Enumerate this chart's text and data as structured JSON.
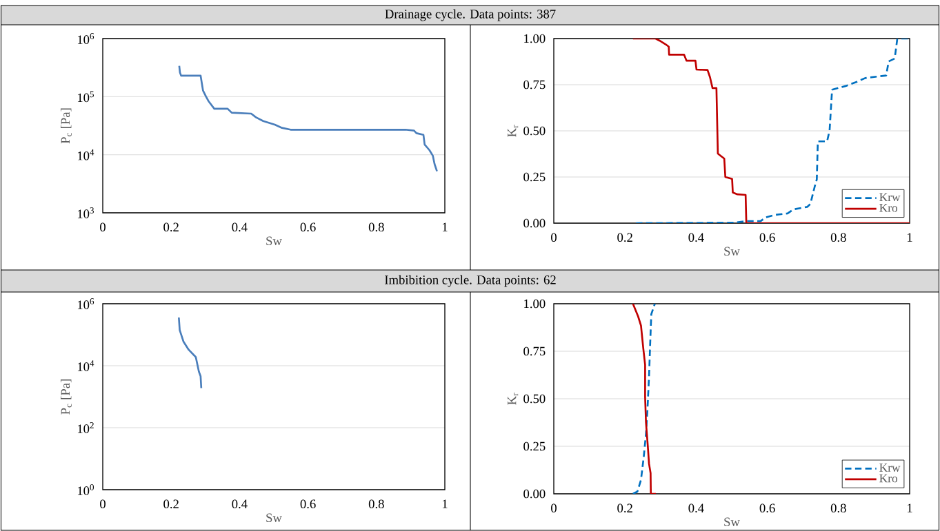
{
  "chart_data": [
    {
      "type": "line",
      "title": "Drainage cycle. Data points: 387",
      "xlabel": "Sw",
      "ylabel": "P$_{c}$ [Pa]",
      "log": "y",
      "grid": "y",
      "xlim": [
        0,
        1
      ],
      "xticks": [
        0,
        0.2,
        0.4,
        0.6,
        0.8,
        1
      ],
      "ylim": [
        1000,
        1000000
      ],
      "yticks": [
        {
          "value": 1000,
          "label": "10$^{3}$"
        },
        {
          "value": 10000,
          "label": "10$^{4}$"
        },
        {
          "value": 100000,
          "label": "10$^{5}$"
        },
        {
          "value": 1000000,
          "label": "10$^{6}$"
        }
      ],
      "series": [
        {
          "color": "#4a7ebb",
          "line_style": "solid",
          "x": [
            0.2236,
            0.2257,
            0.229,
            0.286,
            0.293,
            0.302,
            0.309,
            0.326,
            0.365,
            0.377,
            0.434,
            0.448,
            0.469,
            0.503,
            0.524,
            0.549,
            0.885,
            0.91,
            0.917,
            0.9375,
            0.941,
            0.955,
            0.965,
            0.97,
            0.977
          ],
          "values": [
            340000,
            260000,
            230000,
            230000,
            128000,
            100000,
            84000,
            62000,
            62000,
            53000,
            51000,
            44000,
            38000,
            33000,
            29000,
            27000,
            27000,
            26000,
            23500,
            22000,
            15000,
            12000,
            9600,
            6900,
            5200
          ]
        }
      ]
    },
    {
      "type": "line",
      "xlabel": "Sw",
      "ylabel": "K$_{r}$",
      "grid": "y",
      "legend": "bottom right",
      "xlim": [
        0,
        1
      ],
      "xticks": [
        0,
        0.2,
        0.4,
        0.6,
        0.8,
        1
      ],
      "ylim": [
        0,
        1
      ],
      "yticks": [
        {
          "value": 0,
          "label": "0.00"
        },
        {
          "value": 0.25,
          "label": "0.25"
        },
        {
          "value": 0.5,
          "label": "0.50"
        },
        {
          "value": 0.75,
          "label": "0.75"
        },
        {
          "value": 1,
          "label": "1.00"
        }
      ],
      "series": [
        {
          "name": "Krw",
          "color": "#0070c0",
          "line_style": "dashed",
          "x": [
            0.231,
            0.508,
            0.539,
            0.581,
            0.595,
            0.619,
            0.657,
            0.674,
            0.712,
            0.721,
            0.733,
            0.739,
            0.742,
            0.768,
            0.775,
            0.782,
            0.82,
            0.848,
            0.875,
            0.934,
            0.941,
            0.958,
            0.965,
            0.972,
            1.0
          ],
          "values": [
            0,
            0.003,
            0.011,
            0.011,
            0.031,
            0.044,
            0.053,
            0.075,
            0.088,
            0.104,
            0.197,
            0.237,
            0.443,
            0.443,
            0.503,
            0.723,
            0.743,
            0.763,
            0.786,
            0.8,
            0.876,
            0.892,
            0.996,
            1.0,
            1.0
          ]
        },
        {
          "name": "Kro",
          "color": "#c00000",
          "line_style": "solid",
          "x": [
            0.2225,
            0.286,
            0.297,
            0.314,
            0.323,
            0.324,
            0.366,
            0.373,
            0.398,
            0.401,
            0.432,
            0.439,
            0.446,
            0.457,
            0.461,
            0.4695,
            0.479,
            0.482,
            0.501,
            0.503,
            0.516,
            0.539,
            0.541,
            1.0
          ],
          "values": [
            1.0,
            1.0,
            0.989,
            0.969,
            0.956,
            0.913,
            0.913,
            0.88,
            0.88,
            0.832,
            0.83,
            0.79,
            0.732,
            0.732,
            0.377,
            0.364,
            0.35,
            0.25,
            0.24,
            0.166,
            0.156,
            0.153,
            0.0,
            0.0
          ]
        }
      ]
    },
    {
      "type": "line",
      "title": "Imbibition cycle. Data points: 62",
      "xlabel": "Sw",
      "ylabel": "P$_{c}$ [Pa]",
      "log": "y",
      "grid": "y",
      "xlim": [
        0,
        1
      ],
      "xticks": [
        0,
        0.2,
        0.4,
        0.6,
        0.8,
        1
      ],
      "ylim": [
        1,
        1000000
      ],
      "yticks": [
        {
          "value": 1,
          "label": "10$^{0}$"
        },
        {
          "value": 100,
          "label": "10$^{2}$"
        },
        {
          "value": 10000,
          "label": "10$^{4}$"
        },
        {
          "value": 1000000,
          "label": "10$^{6}$"
        }
      ],
      "series": [
        {
          "color": "#4a7ebb",
          "line_style": "solid",
          "x": [
            0.2224,
            0.225,
            0.236,
            0.251,
            0.272,
            0.281,
            0.286,
            0.288
          ],
          "values": [
            360000,
            140000,
            60000,
            33000,
            19000,
            6500,
            4600,
            1900
          ]
        }
      ]
    },
    {
      "type": "line",
      "xlabel": "Sw",
      "ylabel": "K$_{r}$",
      "grid": "y",
      "legend": "bottom right",
      "xlim": [
        0,
        1
      ],
      "xticks": [
        0,
        0.2,
        0.4,
        0.6,
        0.8,
        1
      ],
      "ylim": [
        0,
        1
      ],
      "yticks": [
        {
          "value": 0,
          "label": "0.00"
        },
        {
          "value": 0.25,
          "label": "0.25"
        },
        {
          "value": 0.5,
          "label": "0.50"
        },
        {
          "value": 0.75,
          "label": "0.75"
        },
        {
          "value": 1,
          "label": "1.00"
        }
      ],
      "series": [
        {
          "name": "Krw",
          "color": "#0070c0",
          "line_style": "dashed",
          "x": [
            0.2224,
            0.235,
            0.245,
            0.2527,
            0.259,
            0.263,
            0.2676,
            0.271,
            0.274,
            0.284
          ],
          "values": [
            0,
            0.012,
            0.073,
            0.194,
            0.315,
            0.436,
            0.618,
            0.8,
            0.945,
            1.0
          ]
        },
        {
          "name": "Kro",
          "color": "#c00000",
          "line_style": "solid",
          "x": [
            0.2224,
            0.237,
            0.245,
            0.2515,
            0.2566,
            0.2566,
            0.259,
            0.264,
            0.2676,
            0.272,
            0.2727,
            0.287
          ],
          "values": [
            1.0,
            0.933,
            0.885,
            0.764,
            0.679,
            0.509,
            0.376,
            0.255,
            0.158,
            0.109,
            0,
            0
          ]
        }
      ]
    }
  ]
}
